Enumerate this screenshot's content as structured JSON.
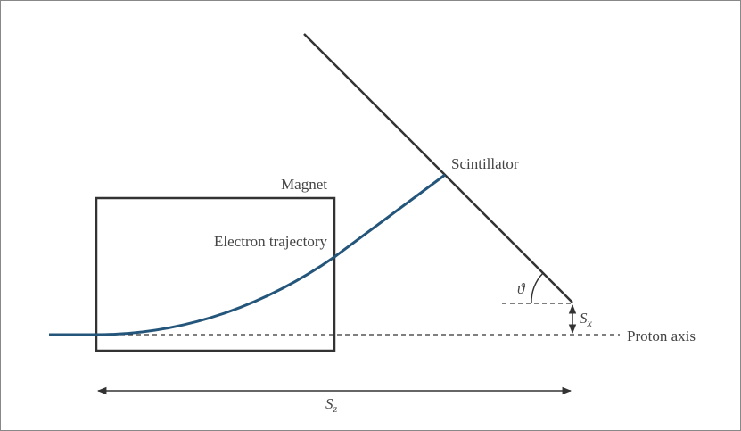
{
  "labels": {
    "magnet": "Magnet",
    "scintillator": "Scintillator",
    "trajectory": "Electron trajectory",
    "proton_axis": "Proton axis",
    "angle": "ϑ",
    "sx": {
      "main": "S",
      "sub": "x"
    },
    "sz": {
      "main": "S",
      "sub": "z"
    }
  }
}
